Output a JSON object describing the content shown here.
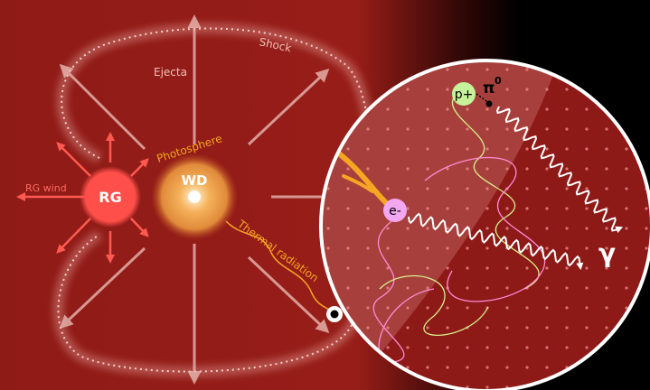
{
  "labels": {
    "shock": "Shock",
    "ejecta": "Ejecta",
    "rg_wind": "RG wind",
    "rg": "RG",
    "wd": "WD",
    "photosphere": "Photosphere",
    "thermal_radiation": "Thermal radiation",
    "proton": "p+",
    "pion": "π",
    "pion_charge": "0",
    "electron": "e-",
    "gamma": "γ"
  }
}
